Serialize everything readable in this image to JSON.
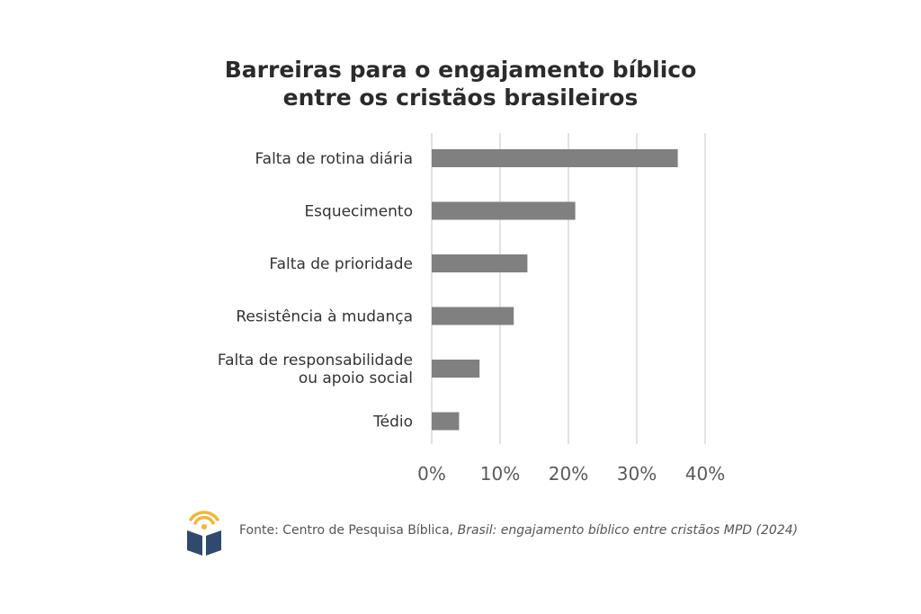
{
  "chart_data": {
    "type": "bar",
    "orientation": "horizontal",
    "title_lines": [
      "Barreiras para o engajamento bíblico",
      "entre os cristãos brasileiros"
    ],
    "categories": [
      [
        "Falta de rotina diária"
      ],
      [
        "Esquecimento"
      ],
      [
        "Falta de prioridade"
      ],
      [
        "Resistência à mudança"
      ],
      [
        "Falta de responsabilidade",
        "ou apoio social"
      ],
      [
        "Tédio"
      ]
    ],
    "values": [
      36,
      21,
      14,
      12,
      7,
      4
    ],
    "xlim": [
      0,
      40
    ],
    "ticks": [
      0,
      10,
      20,
      30,
      40
    ],
    "tick_labels": [
      "0%",
      "10%",
      "20%",
      "30%",
      "40%"
    ],
    "grid": true,
    "bar_color": "#808080",
    "grid_color": "#d9d9d9"
  },
  "footer": {
    "source_prefix": "Fonte: Centro de Pesquisa Bíblica, ",
    "source_italic": "Brasil: engajamento bíblico entre cristãos MPD (2024)"
  },
  "logo": {
    "icon": "open-book-signal-icon",
    "book_color": "#2f4a6e",
    "signal_color": "#f2b632"
  }
}
